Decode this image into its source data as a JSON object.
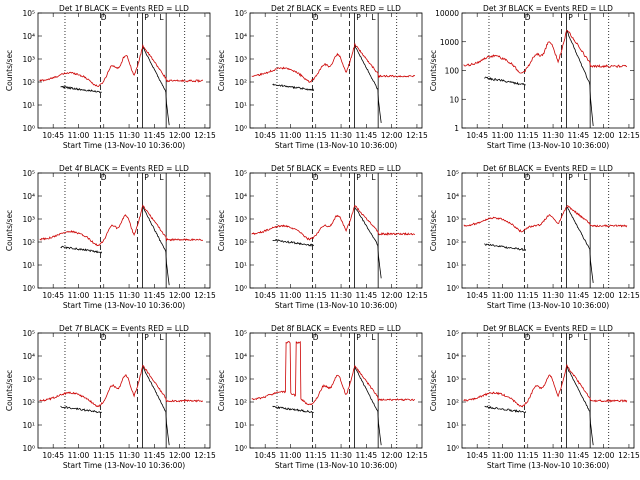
{
  "chart_data": {
    "type": "line",
    "x_tick_labels": [
      "10:45",
      "11:00",
      "11:15",
      "11:30",
      "11:45",
      "12:00",
      "12:15"
    ],
    "xlabel": "Start Time (13-Nov-10 10:36:00)",
    "ylabel": "Counts/sec",
    "y_scale": "log",
    "colors": {
      "events": "#000000",
      "lld": "#cc0000"
    },
    "markers": {
      "top_left": "D",
      "top_mid": "P",
      "top_right": "L"
    },
    "vertical_lines": [
      {
        "time": "10:52",
        "style": "dotted"
      },
      {
        "time": "11:13",
        "style": "dashed"
      },
      {
        "time": "11:35",
        "style": "dashed"
      },
      {
        "time": "11:38",
        "style": "solid"
      },
      {
        "time": "11:52",
        "style": "solid"
      },
      {
        "time": "12:03",
        "style": "dotted"
      }
    ],
    "panels": [
      {
        "title": "Det 1f BLACK = Events  RED = LLD",
        "y_tick_labels": [
          "10⁰",
          "10¹",
          "10²",
          "10³",
          "10⁴",
          "10⁵"
        ],
        "y_range_log": [
          0,
          5
        ],
        "lld_base_log": 2.05,
        "lld_peak_log": 3.6,
        "events_pre_log": 1.8,
        "events_gap": false
      },
      {
        "title": "Det 2f BLACK = Events  RED = LLD",
        "y_tick_labels": [
          "10⁰",
          "10¹",
          "10²",
          "10³",
          "10⁴",
          "10⁵"
        ],
        "y_range_log": [
          0,
          5
        ],
        "lld_base_log": 2.25,
        "lld_peak_log": 3.65,
        "events_pre_log": 1.9,
        "events_gap": false
      },
      {
        "title": "Det 3f BLACK = Events  RED = LLD",
        "y_tick_labels": [
          "1",
          "10",
          "100",
          "1000",
          "10000"
        ],
        "y_range_log": [
          0,
          4
        ],
        "lld_base_log": 2.15,
        "lld_peak_log": 3.45,
        "events_pre_log": 1.75,
        "events_gap": false
      },
      {
        "title": "Det 4f BLACK = Events  RED = LLD",
        "y_tick_labels": [
          "10⁰",
          "10¹",
          "10²",
          "10³",
          "10⁴",
          "10⁵"
        ],
        "y_range_log": [
          0,
          5
        ],
        "lld_base_log": 2.1,
        "lld_peak_log": 3.6,
        "events_pre_log": 1.8,
        "events_gap": false
      },
      {
        "title": "Det 5f BLACK = Events  RED = LLD",
        "y_tick_labels": [
          "10⁰",
          "10¹",
          "10²",
          "10³",
          "10⁴",
          "10⁵"
        ],
        "y_range_log": [
          0,
          5
        ],
        "lld_base_log": 2.35,
        "lld_peak_log": 3.6,
        "events_pre_log": 2.1,
        "events_gap": false
      },
      {
        "title": "Det 6f BLACK = Events  RED = LLD",
        "y_tick_labels": [
          "10⁰",
          "10¹",
          "10²",
          "10³",
          "10⁴",
          "10⁵"
        ],
        "y_range_log": [
          0,
          5
        ],
        "lld_base_log": 2.7,
        "lld_peak_log": 3.6,
        "events_pre_log": 1.9,
        "events_gap": false
      },
      {
        "title": "Det 7f BLACK = Events  RED = LLD",
        "y_tick_labels": [
          "10⁰",
          "10¹",
          "10²",
          "10³",
          "10⁴",
          "10⁵"
        ],
        "y_range_log": [
          0,
          5
        ],
        "lld_base_log": 2.05,
        "lld_peak_log": 3.6,
        "events_pre_log": 1.8,
        "events_gap": true
      },
      {
        "title": "Det 8f BLACK = Events  RED = LLD",
        "y_tick_labels": [
          "10⁰",
          "10¹",
          "10²",
          "10³",
          "10⁴",
          "10⁵"
        ],
        "y_range_log": [
          0,
          5
        ],
        "lld_base_log": 2.1,
        "lld_peak_log": 3.6,
        "events_pre_log": 1.8,
        "events_gap": false,
        "lld_spike_log": 4.6
      },
      {
        "title": "Det 9f BLACK = Events  RED = LLD",
        "y_tick_labels": [
          "10⁰",
          "10¹",
          "10²",
          "10³",
          "10⁴",
          "10⁵"
        ],
        "y_range_log": [
          0,
          5
        ],
        "lld_base_log": 2.05,
        "lld_peak_log": 3.6,
        "events_pre_log": 1.8,
        "events_gap": false
      }
    ]
  }
}
